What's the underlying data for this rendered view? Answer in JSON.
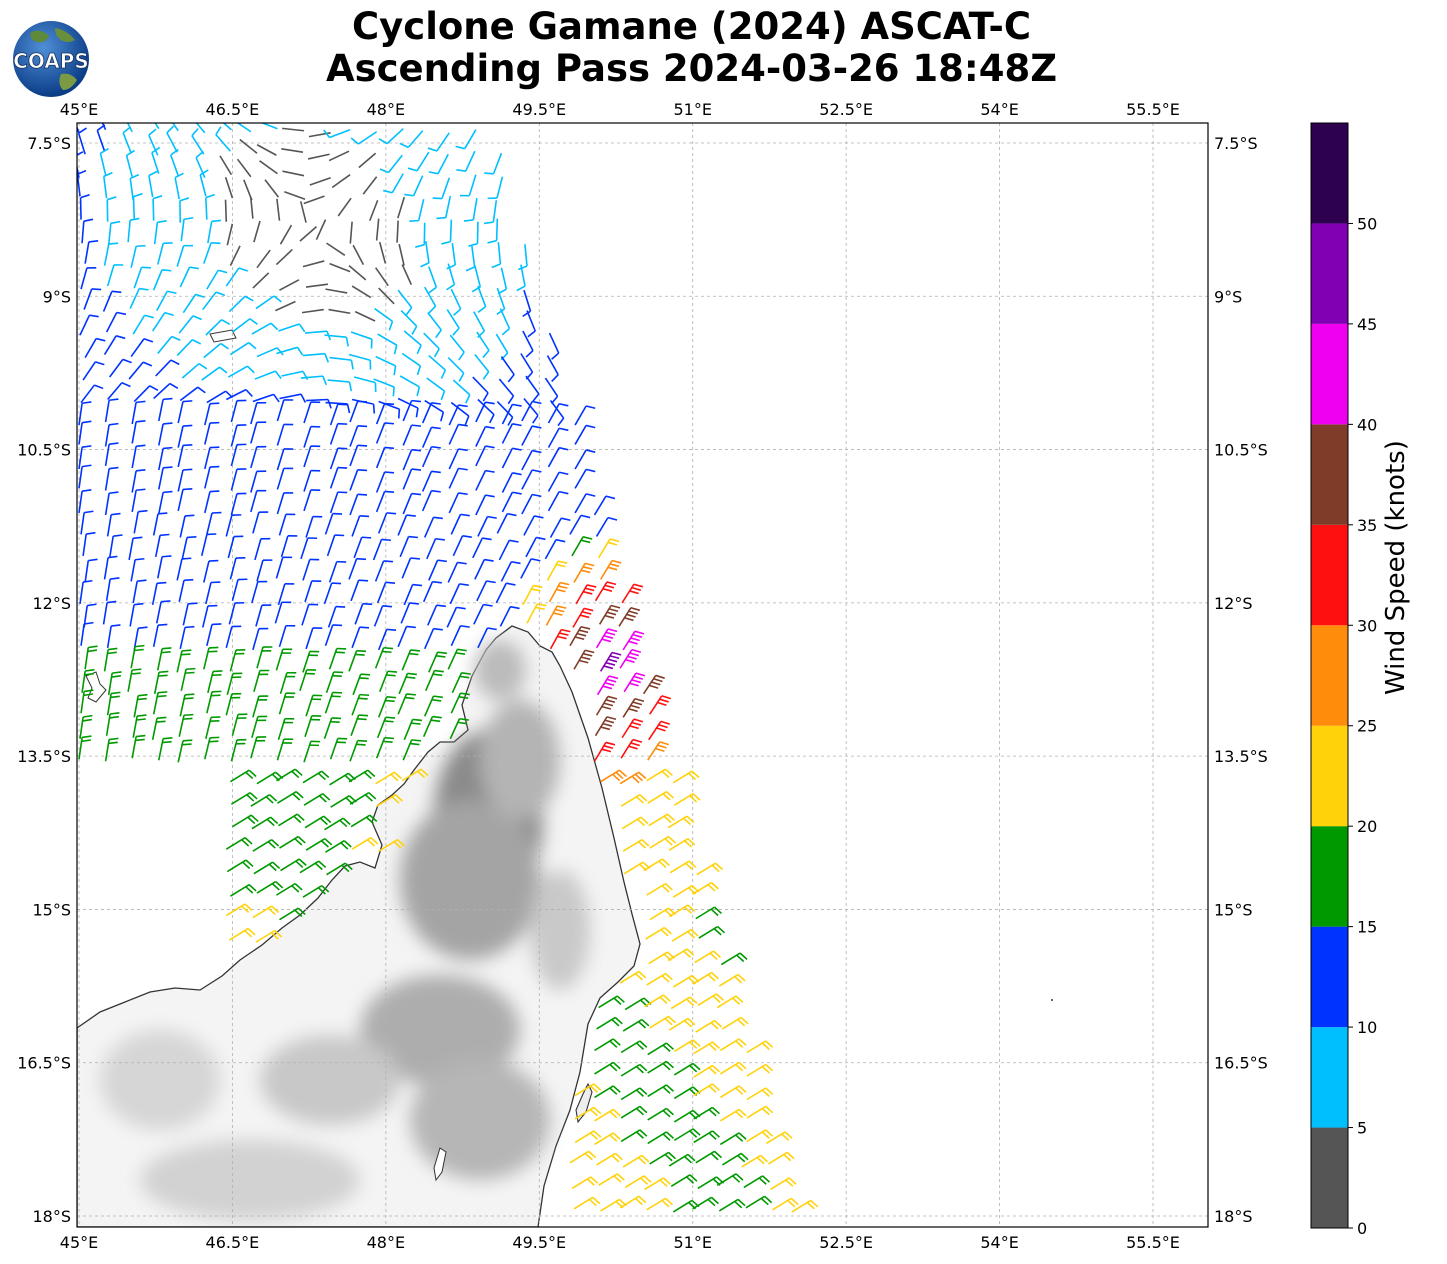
{
  "title": {
    "line1": "Cyclone Gamane (2024) ASCAT-C",
    "line2": "Ascending Pass 2024-03-26 18:48Z"
  },
  "logo": {
    "text": "COAPS",
    "icon": "globe-logo"
  },
  "map": {
    "projection": "plate-carree",
    "lon_range": [
      45.0,
      56.1
    ],
    "lat_range": [
      -18.1,
      -7.3
    ],
    "lon_ticks": [
      "45°E",
      "46.5°E",
      "48°E",
      "49.5°E",
      "51°E",
      "52.5°E",
      "54°E",
      "55.5°E"
    ],
    "lon_tick_values": [
      45.0,
      46.5,
      48.0,
      49.5,
      51.0,
      52.5,
      54.0,
      55.5
    ],
    "lat_ticks": [
      "7.5°S",
      "9°S",
      "10.5°S",
      "12°S",
      "13.5°S",
      "15°S",
      "16.5°S",
      "18°S"
    ],
    "lat_tick_values": [
      -7.5,
      -9.0,
      -10.5,
      -12.0,
      -13.5,
      -15.0,
      -16.5,
      -18.0
    ],
    "grid": true,
    "land": "Madagascar (grayscale terrain)",
    "swath_edge_lon_top": 49.0,
    "swath_edge_lon_bottom": 52.0
  },
  "colorbar": {
    "label": "Wind Speed (knots)",
    "tick_labels": [
      "0",
      "5",
      "10",
      "15",
      "20",
      "25",
      "30",
      "35",
      "40",
      "45",
      "50"
    ],
    "bins": [
      {
        "min": 0,
        "max": 5,
        "color": "#555555"
      },
      {
        "min": 5,
        "max": 10,
        "color": "#00bfff"
      },
      {
        "min": 10,
        "max": 15,
        "color": "#0033ff"
      },
      {
        "min": 15,
        "max": 20,
        "color": "#009900"
      },
      {
        "min": 20,
        "max": 25,
        "color": "#ffd20a"
      },
      {
        "min": 25,
        "max": 30,
        "color": "#ff8c0a"
      },
      {
        "min": 30,
        "max": 35,
        "color": "#ff1010"
      },
      {
        "min": 35,
        "max": 40,
        "color": "#7f3c28"
      },
      {
        "min": 40,
        "max": 45,
        "color": "#f000f0"
      },
      {
        "min": 45,
        "max": 50,
        "color": "#8000b4"
      },
      {
        "min": 50,
        "max": 55,
        "color": "#2d0050"
      }
    ]
  }
}
